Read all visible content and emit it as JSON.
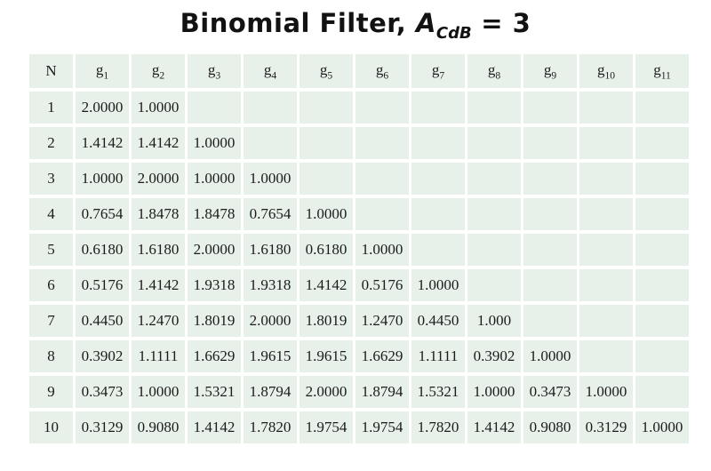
{
  "title": {
    "prefix": "Binomial Filter, ",
    "var_base": "A",
    "var_sub": "CdB",
    "suffix": " = 3"
  },
  "colors": {
    "page_bg": "#ffffff",
    "cell_bg": "#e7f0e9",
    "gap": "#ffffff",
    "text": "#1c1c1c"
  },
  "table": {
    "columns": [
      {
        "base": "N",
        "sub": ""
      },
      {
        "base": "g",
        "sub": "1"
      },
      {
        "base": "g",
        "sub": "2"
      },
      {
        "base": "g",
        "sub": "3"
      },
      {
        "base": "g",
        "sub": "4"
      },
      {
        "base": "g",
        "sub": "5"
      },
      {
        "base": "g",
        "sub": "6"
      },
      {
        "base": "g",
        "sub": "7"
      },
      {
        "base": "g",
        "sub": "8"
      },
      {
        "base": "g",
        "sub": "9"
      },
      {
        "base": "g",
        "sub": "10"
      },
      {
        "base": "g",
        "sub": "11"
      }
    ],
    "value_column_count": 11,
    "rows": [
      {
        "n": "1",
        "values": [
          "2.0000",
          "1.0000"
        ]
      },
      {
        "n": "2",
        "values": [
          "1.4142",
          "1.4142",
          "1.0000"
        ]
      },
      {
        "n": "3",
        "values": [
          "1.0000",
          "2.0000",
          "1.0000",
          "1.0000"
        ]
      },
      {
        "n": "4",
        "values": [
          "0.7654",
          "1.8478",
          "1.8478",
          "0.7654",
          "1.0000"
        ]
      },
      {
        "n": "5",
        "values": [
          "0.6180",
          "1.6180",
          "2.0000",
          "1.6180",
          "0.6180",
          "1.0000"
        ]
      },
      {
        "n": "6",
        "values": [
          "0.5176",
          "1.4142",
          "1.9318",
          "1.9318",
          "1.4142",
          "0.5176",
          "1.0000"
        ]
      },
      {
        "n": "7",
        "values": [
          "0.4450",
          "1.2470",
          "1.8019",
          "2.0000",
          "1.8019",
          "1.2470",
          "0.4450",
          "1.000"
        ]
      },
      {
        "n": "8",
        "values": [
          "0.3902",
          "1.1111",
          "1.6629",
          "1.9615",
          "1.9615",
          "1.6629",
          "1.1111",
          "0.3902",
          "1.0000"
        ]
      },
      {
        "n": "9",
        "values": [
          "0.3473",
          "1.0000",
          "1.5321",
          "1.8794",
          "2.0000",
          "1.8794",
          "1.5321",
          "1.0000",
          "0.3473",
          "1.0000"
        ]
      },
      {
        "n": "10",
        "values": [
          "0.3129",
          "0.9080",
          "1.4142",
          "1.7820",
          "1.9754",
          "1.9754",
          "1.7820",
          "1.4142",
          "0.9080",
          "0.3129",
          "1.0000"
        ]
      }
    ]
  }
}
